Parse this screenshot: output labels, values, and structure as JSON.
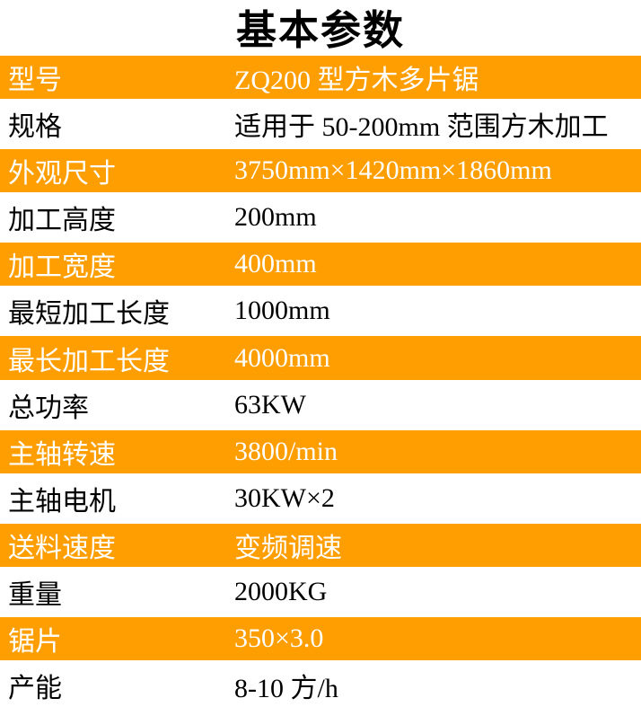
{
  "title": "基本参数",
  "colors": {
    "highlight_row_background": "#FF9E00",
    "highlight_row_text": "#FFFFFF",
    "plain_row_text": "#000000",
    "title_text": "#000000"
  },
  "table": {
    "rows": [
      {
        "label": "型号",
        "value": "ZQ200 型方木多片锯"
      },
      {
        "label": "规格",
        "value": "适用于 50-200mm 范围方木加工"
      },
      {
        "label": "外观尺寸",
        "value": "3750mm×1420mm×1860mm"
      },
      {
        "label": "加工高度",
        "value": "200mm"
      },
      {
        "label": "加工宽度",
        "value": "400mm"
      },
      {
        "label": "最短加工长度",
        "value": "1000mm"
      },
      {
        "label": "最长加工长度",
        "value": "4000mm"
      },
      {
        "label": "总功率",
        "value": "63KW"
      },
      {
        "label": "主轴转速",
        "value": "3800/min"
      },
      {
        "label": "主轴电机",
        "value": "30KW×2"
      },
      {
        "label": "送料速度",
        "value": "变频调速"
      },
      {
        "label": "重量",
        "value": "2000KG"
      },
      {
        "label": "锯片",
        "value": "350×3.0"
      },
      {
        "label": "产能",
        "value": "8-10 方/h"
      }
    ]
  }
}
